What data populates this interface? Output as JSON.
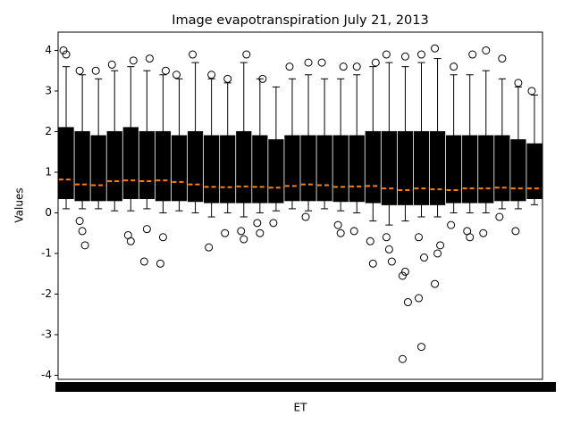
{
  "chart_data": {
    "type": "boxplot",
    "title": "Image evapotranspiration July 21, 2013",
    "x_label": "ET",
    "y_label": "Values",
    "categories": [
      null,
      null,
      null,
      null,
      null,
      null,
      null,
      null,
      null,
      null,
      null,
      null,
      null,
      null,
      null,
      null,
      null,
      null,
      null,
      null,
      null,
      null,
      null,
      null,
      null,
      null,
      null,
      null,
      null,
      null
    ],
    "box_color": "#000000",
    "median_color": "#ff7f0e",
    "boxes": [
      {
        "whislo": 0.1,
        "q1": 0.35,
        "med": 0.82,
        "q3": 2.1,
        "whishi": 3.6,
        "fliers": [
          4.0,
          3.9
        ]
      },
      {
        "whislo": 0.1,
        "q1": 0.3,
        "med": 0.7,
        "q3": 2.0,
        "whishi": 3.4,
        "fliers": [
          -0.2,
          -0.45,
          -0.8,
          3.5
        ]
      },
      {
        "whislo": 0.1,
        "q1": 0.3,
        "med": 0.68,
        "q3": 1.9,
        "whishi": 3.3,
        "fliers": [
          3.5
        ]
      },
      {
        "whislo": 0.05,
        "q1": 0.3,
        "med": 0.78,
        "q3": 2.0,
        "whishi": 3.5,
        "fliers": [
          3.65
        ]
      },
      {
        "whislo": 0.05,
        "q1": 0.35,
        "med": 0.8,
        "q3": 2.1,
        "whishi": 3.6,
        "fliers": [
          -0.55,
          -0.7,
          3.75
        ]
      },
      {
        "whislo": 0.1,
        "q1": 0.35,
        "med": 0.78,
        "q3": 2.0,
        "whishi": 3.5,
        "fliers": [
          -1.2,
          -0.4,
          3.8
        ]
      },
      {
        "whislo": 0.0,
        "q1": 0.3,
        "med": 0.8,
        "q3": 2.0,
        "whishi": 3.4,
        "fliers": [
          -1.25,
          -0.6,
          3.5
        ]
      },
      {
        "whislo": 0.05,
        "q1": 0.3,
        "med": 0.76,
        "q3": 1.9,
        "whishi": 3.3,
        "fliers": [
          3.4
        ]
      },
      {
        "whislo": 0.0,
        "q1": 0.28,
        "med": 0.7,
        "q3": 2.0,
        "whishi": 3.7,
        "fliers": [
          3.9
        ]
      },
      {
        "whislo": -0.1,
        "q1": 0.25,
        "med": 0.64,
        "q3": 1.9,
        "whishi": 3.3,
        "fliers": [
          -0.85,
          3.4
        ]
      },
      {
        "whislo": 0.0,
        "q1": 0.25,
        "med": 0.63,
        "q3": 1.9,
        "whishi": 3.2,
        "fliers": [
          -0.5,
          3.3
        ]
      },
      {
        "whislo": -0.1,
        "q1": 0.25,
        "med": 0.65,
        "q3": 2.0,
        "whishi": 3.7,
        "fliers": [
          -0.45,
          -0.65,
          3.9
        ]
      },
      {
        "whislo": 0.0,
        "q1": 0.25,
        "med": 0.64,
        "q3": 1.9,
        "whishi": 3.3,
        "fliers": [
          -0.25,
          -0.5,
          3.3
        ]
      },
      {
        "whislo": 0.05,
        "q1": 0.25,
        "med": 0.62,
        "q3": 1.8,
        "whishi": 3.1,
        "fliers": [
          -0.25
        ]
      },
      {
        "whislo": 0.1,
        "q1": 0.3,
        "med": 0.66,
        "q3": 1.9,
        "whishi": 3.3,
        "fliers": [
          3.6
        ]
      },
      {
        "whislo": 0.05,
        "q1": 0.3,
        "med": 0.7,
        "q3": 1.9,
        "whishi": 3.4,
        "fliers": [
          -0.1,
          3.7
        ]
      },
      {
        "whislo": 0.1,
        "q1": 0.3,
        "med": 0.68,
        "q3": 1.9,
        "whishi": 3.3,
        "fliers": [
          3.7
        ]
      },
      {
        "whislo": 0.05,
        "q1": 0.28,
        "med": 0.64,
        "q3": 1.9,
        "whishi": 3.3,
        "fliers": [
          -0.3,
          -0.5,
          3.6
        ]
      },
      {
        "whislo": 0.0,
        "q1": 0.28,
        "med": 0.65,
        "q3": 1.9,
        "whishi": 3.4,
        "fliers": [
          -0.45,
          3.6
        ]
      },
      {
        "whislo": -0.2,
        "q1": 0.25,
        "med": 0.66,
        "q3": 2.0,
        "whishi": 3.6,
        "fliers": [
          -0.7,
          -1.25,
          3.7
        ]
      },
      {
        "whislo": -0.3,
        "q1": 0.2,
        "med": 0.6,
        "q3": 2.0,
        "whishi": 3.7,
        "fliers": [
          -0.6,
          -0.9,
          -1.2,
          3.9
        ]
      },
      {
        "whislo": -0.2,
        "q1": 0.2,
        "med": 0.56,
        "q3": 2.0,
        "whishi": 3.6,
        "fliers": [
          -1.55,
          -1.45,
          -2.2,
          -3.6,
          3.85
        ]
      },
      {
        "whislo": -0.1,
        "q1": 0.2,
        "med": 0.6,
        "q3": 2.0,
        "whishi": 3.7,
        "fliers": [
          -2.1,
          -3.3,
          -1.1,
          -0.6,
          3.9
        ]
      },
      {
        "whislo": -0.1,
        "q1": 0.2,
        "med": 0.58,
        "q3": 2.0,
        "whishi": 3.8,
        "fliers": [
          -1.75,
          -1.0,
          -0.8,
          4.05
        ]
      },
      {
        "whislo": 0.0,
        "q1": 0.25,
        "med": 0.56,
        "q3": 1.9,
        "whishi": 3.4,
        "fliers": [
          -0.3,
          3.6
        ]
      },
      {
        "whislo": 0.0,
        "q1": 0.25,
        "med": 0.6,
        "q3": 1.9,
        "whishi": 3.4,
        "fliers": [
          -0.45,
          -0.6,
          3.9
        ]
      },
      {
        "whislo": 0.0,
        "q1": 0.25,
        "med": 0.6,
        "q3": 1.9,
        "whishi": 3.5,
        "fliers": [
          -0.5,
          4.0
        ]
      },
      {
        "whislo": 0.1,
        "q1": 0.3,
        "med": 0.62,
        "q3": 1.9,
        "whishi": 3.3,
        "fliers": [
          -0.1,
          3.8
        ]
      },
      {
        "whislo": 0.1,
        "q1": 0.3,
        "med": 0.6,
        "q3": 1.8,
        "whishi": 3.1,
        "fliers": [
          -0.45,
          3.2
        ]
      },
      {
        "whislo": 0.2,
        "q1": 0.35,
        "med": 0.6,
        "q3": 1.7,
        "whishi": 2.9,
        "fliers": [
          3.0
        ]
      }
    ],
    "ylim": [
      -4.1,
      4.45
    ],
    "yticks": [
      -4,
      -3,
      -2,
      -1,
      0,
      1,
      2,
      3,
      4
    ]
  }
}
